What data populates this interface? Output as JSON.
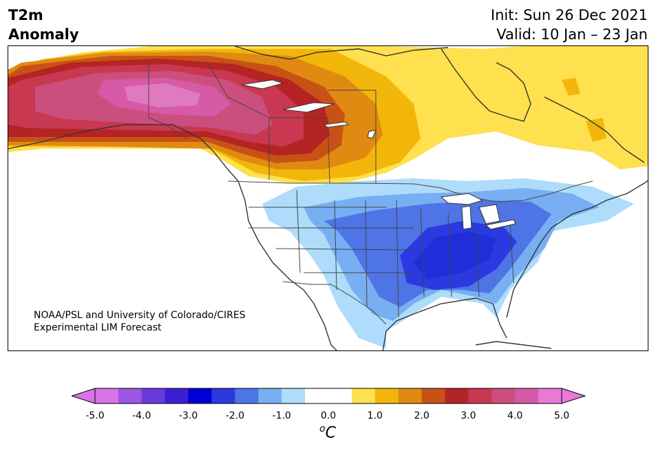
{
  "title": {
    "line1": "T2m",
    "line2": "Anomaly",
    "init": "Init: Sun 26 Dec 2021",
    "valid": "Valid: 10 Jan – 23 Jan"
  },
  "credit": {
    "line1": "NOAA/PSL and University of Colorado/CIRES",
    "line2": "Experimental LIM Forecast"
  },
  "colorbar": {
    "unit_base": "C",
    "unit_sup": "o",
    "ticks": [
      "-5.0",
      "-4.0",
      "-3.0",
      "-2.0",
      "-1.0",
      "0.0",
      "1.0",
      "2.0",
      "3.0",
      "4.0",
      "5.0"
    ],
    "under_color": "#d874e6",
    "over_color": "#e87ad6",
    "colors": [
      "#d874e6",
      "#9b56e2",
      "#6a3bdc",
      "#3b1fd4",
      "#0000d6",
      "#2a3ae0",
      "#4e74e6",
      "#78aef2",
      "#aedcfa",
      "#ffffff",
      "#ffffff",
      "#ffe04e",
      "#f2b60a",
      "#e08a12",
      "#c85216",
      "#b42424",
      "#c83850",
      "#cc4e7e",
      "#d65aa6",
      "#e87ad6"
    ]
  },
  "map": {
    "region": "North America",
    "ocean_color": "#ffffff",
    "coastline_color": "#333333"
  }
}
